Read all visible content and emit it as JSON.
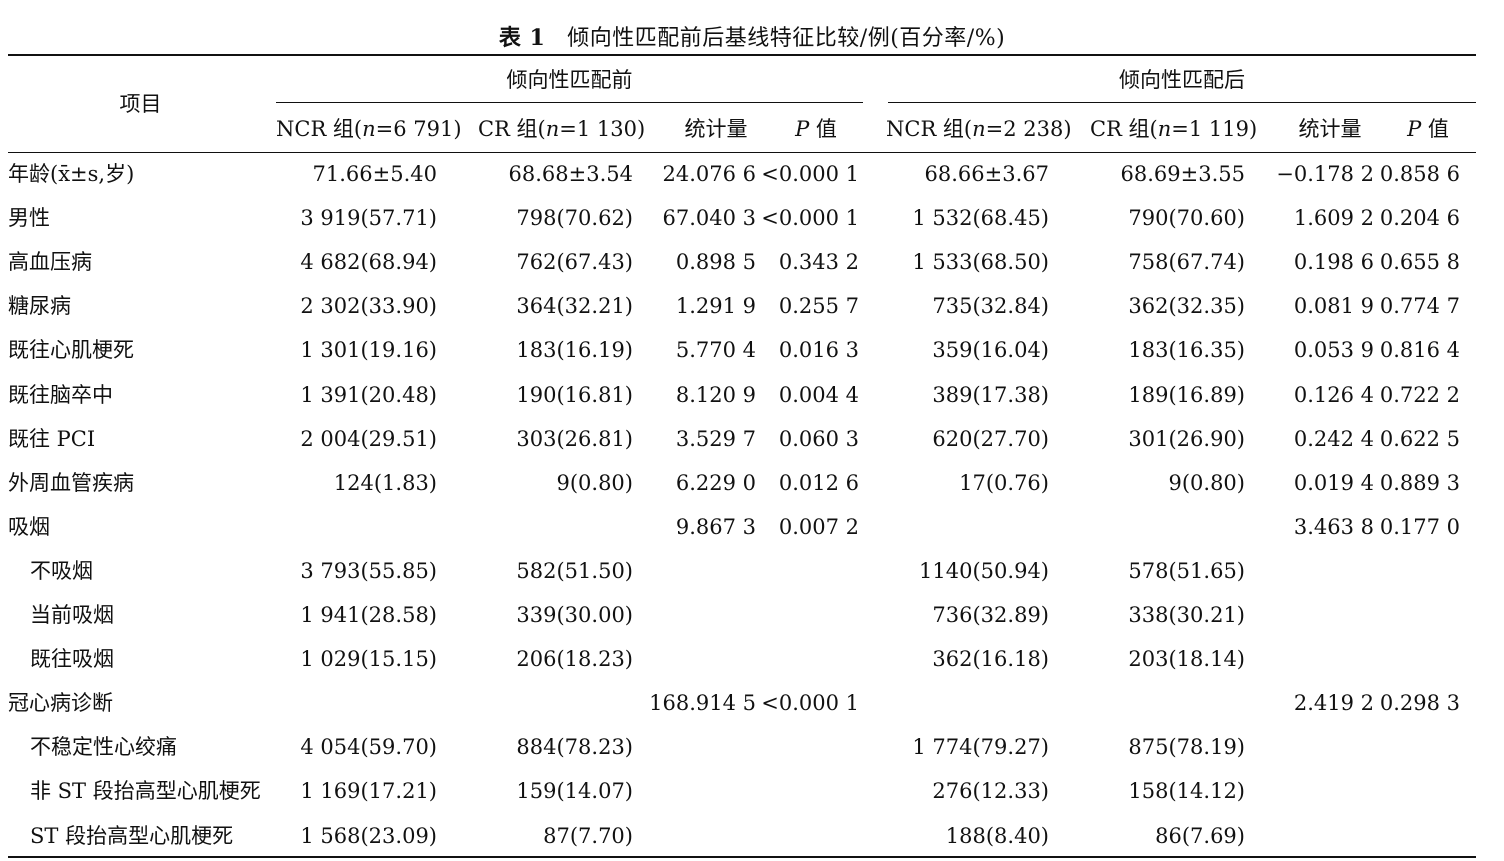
{
  "caption": {
    "label": "表 1",
    "title": "倾向性匹配前后基线特征比较/例(百分率/%)"
  },
  "header": {
    "item": "项目",
    "before": "倾向性匹配前",
    "after": "倾向性匹配后",
    "ncr_before": "NCR 组(n=6 791)",
    "cr_before": "CR 组(n=1 130)",
    "stat_before": "统计量",
    "p_before": "P 值",
    "ncr_after": "NCR 组(n=2 238)",
    "cr_after": "CR 组(n=1 119)",
    "stat_after": "统计量",
    "p_after": "P 值"
  },
  "rows": [
    {
      "item": "年龄(x̄±s,岁)",
      "ncr1": "71.66±5.40",
      "cr1": "68.68±3.54",
      "stat1": "24.076 6",
      "p1": "<0.000 1",
      "ncr2": "68.66±3.67",
      "cr2": "68.69±3.55",
      "stat2": "−0.178 2",
      "p2": "0.858 6"
    },
    {
      "item": "男性",
      "ncr1": "3 919(57.71)",
      "cr1": "798(70.62)",
      "stat1": "67.040 3",
      "p1": "<0.000 1",
      "ncr2": "1 532(68.45)",
      "cr2": "790(70.60)",
      "stat2": "1.609 2",
      "p2": "0.204 6"
    },
    {
      "item": "高血压病",
      "ncr1": "4 682(68.94)",
      "cr1": "762(67.43)",
      "stat1": "0.898 5",
      "p1": "0.343 2",
      "ncr2": "1 533(68.50)",
      "cr2": "758(67.74)",
      "stat2": "0.198 6",
      "p2": "0.655 8"
    },
    {
      "item": "糖尿病",
      "ncr1": "2 302(33.90)",
      "cr1": "364(32.21)",
      "stat1": "1.291 9",
      "p1": "0.255 7",
      "ncr2": "735(32.84)",
      "cr2": "362(32.35)",
      "stat2": "0.081 9",
      "p2": "0.774 7"
    },
    {
      "item": "既往心肌梗死",
      "ncr1": "1 301(19.16)",
      "cr1": "183(16.19)",
      "stat1": "5.770 4",
      "p1": "0.016 3",
      "ncr2": "359(16.04)",
      "cr2": "183(16.35)",
      "stat2": "0.053 9",
      "p2": "0.816 4"
    },
    {
      "item": "既往脑卒中",
      "ncr1": "1 391(20.48)",
      "cr1": "190(16.81)",
      "stat1": "8.120 9",
      "p1": "0.004 4",
      "ncr2": "389(17.38)",
      "cr2": "189(16.89)",
      "stat2": "0.126 4",
      "p2": "0.722 2"
    },
    {
      "item": "既往 PCI",
      "ncr1": "2 004(29.51)",
      "cr1": "303(26.81)",
      "stat1": "3.529 7",
      "p1": "0.060 3",
      "ncr2": "620(27.70)",
      "cr2": "301(26.90)",
      "stat2": "0.242 4",
      "p2": "0.622 5"
    },
    {
      "item": "外周血管疾病",
      "ncr1": "124(1.83)",
      "cr1": "9(0.80)",
      "stat1": "6.229 0",
      "p1": "0.012 6",
      "ncr2": "17(0.76)",
      "cr2": "9(0.80)",
      "stat2": "0.019 4",
      "p2": "0.889 3"
    },
    {
      "item": "吸烟",
      "ncr1": "",
      "cr1": "",
      "stat1": "9.867 3",
      "p1": "0.007 2",
      "ncr2": "",
      "cr2": "",
      "stat2": "3.463 8",
      "p2": "0.177 0"
    },
    {
      "item": "不吸烟",
      "indent": true,
      "ncr1": "3 793(55.85)",
      "cr1": "582(51.50)",
      "stat1": "",
      "p1": "",
      "ncr2": "1140(50.94)",
      "cr2": "578(51.65)",
      "stat2": "",
      "p2": ""
    },
    {
      "item": "当前吸烟",
      "indent": true,
      "ncr1": "1 941(28.58)",
      "cr1": "339(30.00)",
      "stat1": "",
      "p1": "",
      "ncr2": "736(32.89)",
      "cr2": "338(30.21)",
      "stat2": "",
      "p2": ""
    },
    {
      "item": "既往吸烟",
      "indent": true,
      "ncr1": "1 029(15.15)",
      "cr1": "206(18.23)",
      "stat1": "",
      "p1": "",
      "ncr2": "362(16.18)",
      "cr2": "203(18.14)",
      "stat2": "",
      "p2": ""
    },
    {
      "item": "冠心病诊断",
      "ncr1": "",
      "cr1": "",
      "stat1": "168.914 5",
      "p1": "<0.000 1",
      "ncr2": "",
      "cr2": "",
      "stat2": "2.419 2",
      "p2": "0.298 3"
    },
    {
      "item": "不稳定性心绞痛",
      "indent": true,
      "ncr1": "4 054(59.70)",
      "cr1": "884(78.23)",
      "stat1": "",
      "p1": "",
      "ncr2": "1 774(79.27)",
      "cr2": "875(78.19)",
      "stat2": "",
      "p2": ""
    },
    {
      "item": "非 ST 段抬高型心肌梗死",
      "indent": true,
      "ncr1": "1 169(17.21)",
      "cr1": "159(14.07)",
      "stat1": "",
      "p1": "",
      "ncr2": "276(12.33)",
      "cr2": "158(14.12)",
      "stat2": "",
      "p2": ""
    },
    {
      "item": "ST 段抬高型心肌梗死",
      "indent": true,
      "ncr1": "1 568(23.09)",
      "cr1": "87(7.70)",
      "stat1": "",
      "p1": "",
      "ncr2": "188(8.40)",
      "cr2": "86(7.69)",
      "stat2": "",
      "p2": ""
    }
  ]
}
